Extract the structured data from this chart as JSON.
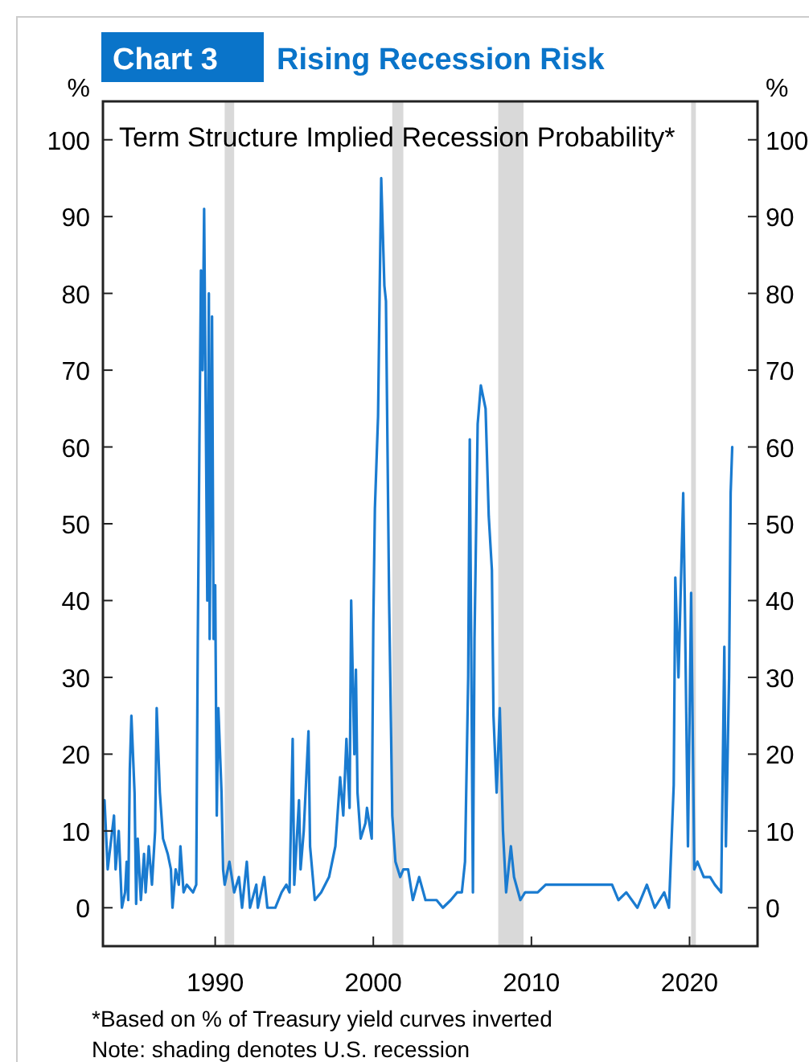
{
  "chart_data": {
    "type": "line",
    "title": "Chart 3",
    "subtitle": "Rising Recession Risk",
    "ylabel": "%",
    "y2label": "%",
    "annotations": [
      "Term Structure Implied Recession Probability*",
      "*Based on % of Treasury yield curves inverted",
      "Note: shading denotes U.S. recession"
    ],
    "xlim": [
      1982.9,
      2024.3
    ],
    "xticks": [
      1990,
      2000,
      2010,
      2020
    ],
    "ylim": [
      -5,
      105
    ],
    "yticks": [
      0,
      10,
      20,
      30,
      40,
      50,
      60,
      70,
      80,
      90,
      100
    ],
    "y2lim": [
      -5,
      105
    ],
    "y2ticks": [
      0,
      10,
      20,
      30,
      40,
      50,
      60,
      70,
      80,
      90,
      100
    ],
    "grid": false,
    "marker": "none",
    "line_style": "solid",
    "bands": [
      {
        "axis": "x",
        "from": 1990.6,
        "to": 1991.2,
        "color": "#d9d9d9"
      },
      {
        "axis": "x",
        "from": 2001.2,
        "to": 2001.9,
        "color": "#d9d9d9"
      },
      {
        "axis": "x",
        "from": 2007.9,
        "to": 2009.5,
        "color": "#d9d9d9"
      },
      {
        "axis": "x",
        "from": 2020.1,
        "to": 2020.4,
        "color": "#d9d9d9"
      }
    ],
    "series": [
      {
        "color": "#1a7bd0",
        "x": [
          1983.0,
          1983.2,
          1983.6,
          1983.7,
          1983.9,
          1984.1,
          1984.3,
          1984.4,
          1984.5,
          1984.6,
          1984.7,
          1984.9,
          1985.0,
          1985.1,
          1985.3,
          1985.5,
          1985.6,
          1985.8,
          1986.0,
          1986.2,
          1986.3,
          1986.5,
          1986.7,
          1987.0,
          1987.2,
          1987.3,
          1987.5,
          1987.7,
          1987.8,
          1988.0,
          1988.2,
          1988.6,
          1988.8,
          1988.9,
          1989.0,
          1989.1,
          1989.2,
          1989.3,
          1989.5,
          1989.6,
          1989.65,
          1989.8,
          1989.9,
          1990.0,
          1990.1,
          1990.2,
          1990.4,
          1990.5,
          1990.6,
          1990.9,
          1991.2,
          1991.5,
          1991.7,
          1992.0,
          1992.2,
          1992.6,
          1992.7,
          1993.1,
          1993.3,
          1993.8,
          1994.2,
          1994.5,
          1994.7,
          1994.9,
          1995.0,
          1995.3,
          1995.4,
          1995.6,
          1995.9,
          1996.0,
          1996.3,
          1996.7,
          1997.2,
          1997.6,
          1997.9,
          1998.1,
          1998.3,
          1998.5,
          1998.6,
          1998.8,
          1998.9,
          1999.0,
          1999.2,
          1999.5,
          1999.6,
          1999.9,
          2000.0,
          2000.1,
          2000.3,
          2000.4,
          2000.5,
          2000.7,
          2000.8,
          2001.0,
          2001.2,
          2001.4,
          2001.7,
          2001.9,
          2002.2,
          2002.5,
          2002.9,
          2003.3,
          2004.0,
          2004.4,
          2004.9,
          2005.3,
          2005.6,
          2005.8,
          2006.0,
          2006.1,
          2006.3,
          2006.4,
          2006.6,
          2006.8,
          2007.1,
          2007.3,
          2007.5,
          2007.6,
          2007.8,
          2008.0,
          2008.2,
          2008.4,
          2008.7,
          2008.9,
          2009.3,
          2009.6,
          2010.4,
          2010.9,
          2011.6,
          2012.7,
          2013.8,
          2015.1,
          2015.5,
          2016.0,
          2016.7,
          2017.3,
          2017.8,
          2018.4,
          2018.7,
          2019.0,
          2019.1,
          2019.3,
          2019.6,
          2019.7,
          2019.9,
          2020.1,
          2020.3,
          2020.5,
          2020.9,
          2021.3,
          2021.6,
          2022.0,
          2022.2,
          2022.3,
          2022.5,
          2022.6,
          2022.7
        ],
        "values": [
          14,
          5,
          12,
          5,
          10,
          0,
          2,
          6,
          1,
          18,
          25,
          15,
          0.5,
          9,
          1,
          7,
          2,
          8,
          3,
          10,
          26,
          15,
          9,
          7,
          5,
          0,
          5,
          3,
          8,
          2,
          3,
          2,
          3,
          35,
          60,
          83,
          70,
          91,
          40,
          80,
          35,
          77,
          35,
          42,
          12,
          26,
          15,
          5,
          3,
          6,
          2,
          4,
          0,
          6,
          0,
          3,
          0,
          4,
          0,
          0,
          2,
          3,
          2,
          22,
          3,
          14,
          5,
          10,
          23,
          8,
          1,
          2,
          4,
          8,
          17,
          12,
          22,
          13,
          40,
          20,
          31,
          15,
          9,
          11,
          13,
          9,
          37,
          52,
          64,
          80,
          95,
          81,
          79,
          40,
          12,
          6,
          4,
          5,
          5,
          1,
          4,
          1,
          1,
          0,
          1,
          2,
          2,
          6,
          30,
          61,
          2,
          35,
          63,
          68,
          65,
          51,
          44,
          25,
          15,
          26,
          10,
          2,
          8,
          4,
          1,
          2,
          2,
          3,
          3,
          3,
          3,
          3,
          1,
          2,
          0,
          3,
          0,
          2,
          0,
          16,
          43,
          30,
          54,
          40,
          8,
          41,
          5,
          6,
          4,
          4,
          3,
          2,
          34,
          8,
          30,
          54,
          60
        ]
      }
    ]
  }
}
